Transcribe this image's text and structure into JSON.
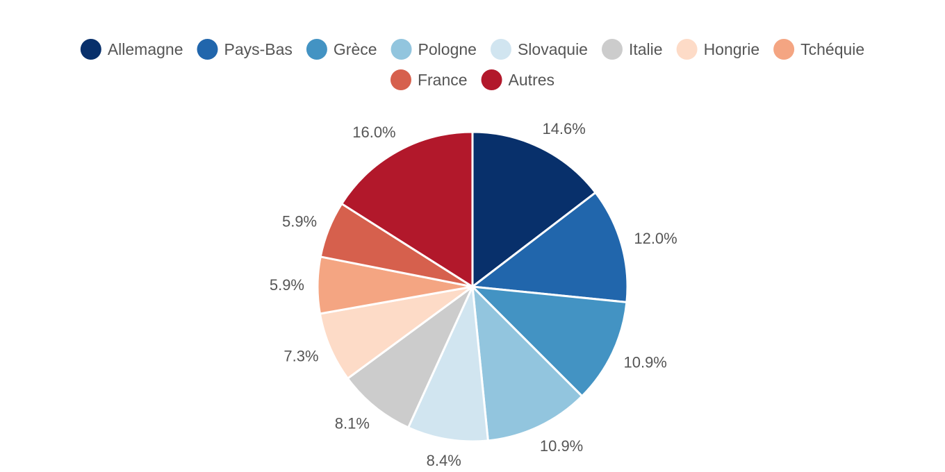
{
  "chart_data": {
    "type": "pie",
    "categories": [
      "Allemagne",
      "Pays-Bas",
      "Grèce",
      "Pologne",
      "Slovaquie",
      "Italie",
      "Hongrie",
      "Tchéquie",
      "France",
      "Autres"
    ],
    "values": [
      14.6,
      12.0,
      10.9,
      10.9,
      8.4,
      8.1,
      7.3,
      5.9,
      5.9,
      16.0
    ],
    "labels": [
      "14.6%",
      "12.0%",
      "10.9%",
      "10.9%",
      "8.4%",
      "8.1%",
      "7.3%",
      "5.9%",
      "5.9%",
      "16.0%"
    ],
    "colors": [
      "#08306b",
      "#2166ac",
      "#4393c3",
      "#92c5de",
      "#d1e5f0",
      "#cccccc",
      "#fddbc7",
      "#f4a582",
      "#d6604d",
      "#b2182b"
    ],
    "legend_position": "top",
    "unit": "%"
  }
}
